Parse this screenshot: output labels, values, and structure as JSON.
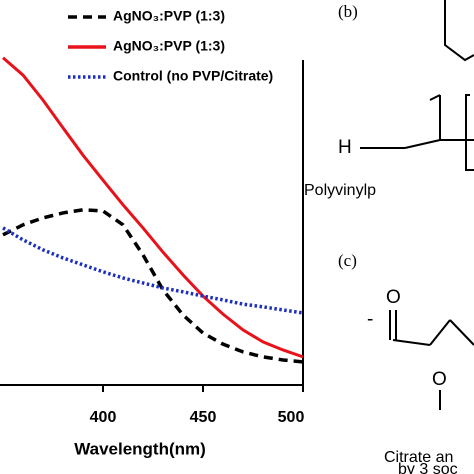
{
  "chart_data": {
    "type": "line",
    "xlabel": "Wavelength(nm)",
    "x": [
      350,
      360,
      370,
      380,
      390,
      400,
      410,
      420,
      430,
      440,
      450,
      460,
      470,
      480,
      490,
      500
    ],
    "xlim": [
      350,
      500
    ],
    "xticks": [
      400,
      450,
      500
    ],
    "ylim": [
      0,
      1
    ],
    "series": [
      {
        "name": "AgNO₃:PVP (1:3)",
        "color": "#000000",
        "style": "dashed",
        "values": [
          0.39,
          0.416,
          0.434,
          0.447,
          0.455,
          0.452,
          0.416,
          0.338,
          0.247,
          0.182,
          0.135,
          0.106,
          0.086,
          0.073,
          0.065,
          0.06
        ]
      },
      {
        "name": "AgNO₃:PVP (1:3)",
        "color": "#e8121b",
        "style": "solid",
        "values": [
          0.85,
          0.805,
          0.74,
          0.668,
          0.597,
          0.532,
          0.468,
          0.408,
          0.345,
          0.286,
          0.231,
          0.184,
          0.143,
          0.112,
          0.091,
          0.073
        ]
      },
      {
        "name": "Control (no PVP/Citrate)",
        "color": "#1c2fbf",
        "style": "dotted",
        "values": [
          0.408,
          0.377,
          0.351,
          0.33,
          0.312,
          0.294,
          0.278,
          0.265,
          0.252,
          0.242,
          0.231,
          0.221,
          0.21,
          0.203,
          0.195,
          0.187
        ]
      }
    ]
  },
  "panels": {
    "b": {
      "label": "(b)",
      "atom": "H",
      "caption": "Polyvinylp"
    },
    "c": {
      "label": "(c)",
      "atoms": [
        "O",
        "-",
        "O"
      ],
      "caption": [
        "Citrate an",
        "by 3 soc"
      ]
    }
  }
}
